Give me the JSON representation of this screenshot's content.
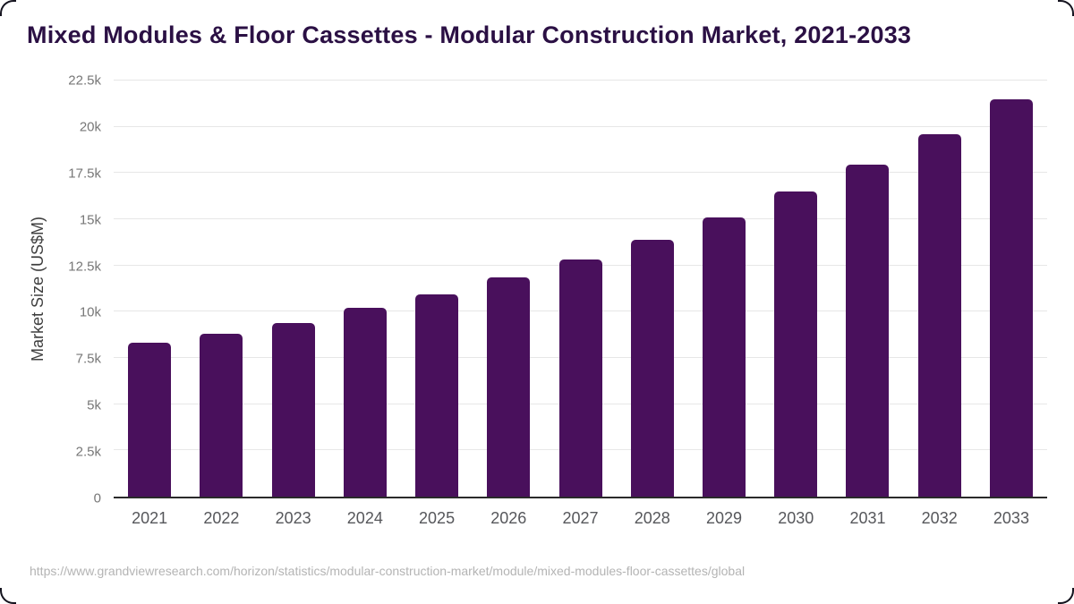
{
  "title": "Mixed Modules & Floor Cassettes - Modular Construction Market, 2021-2033",
  "source_url": "https://www.grandviewresearch.com/horizon/statistics/modular-construction-market/module/mixed-modules-floor-cassettes/global",
  "colors": {
    "bar": "#49105c",
    "title_text": "#2b1044",
    "axis_line": "#2a2a2a",
    "gridline": "#e7e7e7",
    "y_tick_text": "#777777",
    "x_tick_text": "#56575b",
    "y_axis_title_text": "#3f3f3f",
    "source_text": "#b4b4b4",
    "corner_mark": "#15141f",
    "background": "#ffffff"
  },
  "chart_data": {
    "type": "bar",
    "title": "Mixed Modules & Floor Cassettes - Modular Construction Market, 2021-2033",
    "xlabel": "",
    "ylabel": "Market Size (US$M)",
    "categories": [
      "2021",
      "2022",
      "2023",
      "2024",
      "2025",
      "2026",
      "2027",
      "2028",
      "2029",
      "2030",
      "2031",
      "2032",
      "2033"
    ],
    "values": [
      8300,
      8800,
      9400,
      10200,
      10950,
      11850,
      12800,
      13900,
      15100,
      16500,
      17950,
      19600,
      21500
    ],
    "units": "US$M",
    "ylim": [
      0,
      22500
    ],
    "ytick_values": [
      0,
      2500,
      5000,
      7500,
      10000,
      12500,
      15000,
      17500,
      20000,
      22500
    ],
    "ytick_labels": [
      "0",
      "2.5k",
      "5k",
      "7.5k",
      "10k",
      "12.5k",
      "15k",
      "17.5k",
      "20k",
      "22.5k"
    ],
    "grid": true,
    "legend": false
  }
}
